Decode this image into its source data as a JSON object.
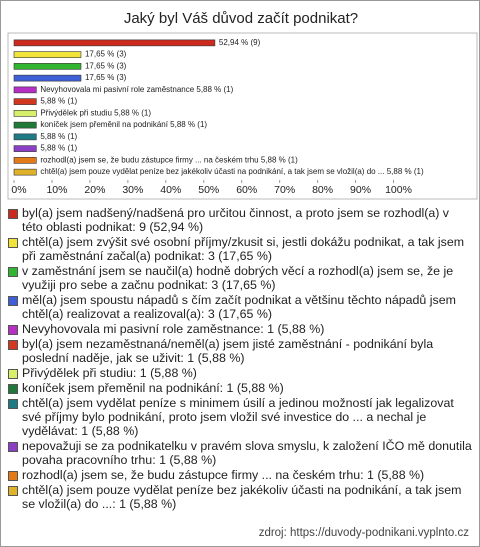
{
  "chart_data": {
    "type": "bar",
    "orientation": "horizontal",
    "title": "Jaký byl Váš důvod začít podnikat?",
    "categories": [
      "byl(a) jsem nadšený/nadšená pro určitou činnost, a proto jsem se rozhodl(a) v této oblasti podnikat: 9 (52,94 %)",
      "chtěl(a) jsem zvýšit své osobní příjmy/zkusit si, jestli dokážu podnikat, a tak jsem při zaměstnání začal(a) podnikat: 3 (17,65 %)",
      "v zaměstnání jsem se naučil(a) hodně dobrých věcí a rozhodl(a) jsem se, že je využiji pro sebe a začnu podnikat: 3 (17,65 %)",
      "měl(a) jsem spoustu nápadů s čím začít podnikat a většinu těchto nápadů jsem chtěl(a) realizovat a realizoval(a): 3 (17,65 %)",
      "Nevyhovovala mi pasivní role zaměstnance: 1 (5,88 %)",
      "byl(a) jsem nezaměstnaná/neměl(a) jsem jisté zaměstnání - podnikání byla poslední naděje, jak se uživit: 1 (5,88 %)",
      "Přivýdělek při studiu: 1 (5,88 %)",
      "koníček jsem přeměnil na podnikání: 1 (5,88 %)",
      "chtěl(a) jsem vydělat peníze s minimem úsilí a jedinou možností jak legalizovat své příjmy bylo podnikání, proto jsem vložil své investice do ... a nechal je vydělávat: 1 (5,88 %)",
      "nepovažuji se za podnikatelku v pravém slova smyslu, k založení IČO mě donutila povaha pracovního trhu: 1 (5,88 %)",
      "rozhodl(a) jsem se, že budu zástupce firmy ... na českém trhu: 1 (5,88 %)",
      "chtěl(a) jsem pouze vydělat peníze bez jakékoliv účasti na podnikání, a tak jsem se vložil(a) do ...: 1 (5,88 %)"
    ],
    "values": [
      52.94,
      17.65,
      17.65,
      17.65,
      5.88,
      5.88,
      5.88,
      5.88,
      5.88,
      5.88,
      5.88,
      5.88
    ],
    "value_labels": [
      "52,94 % (9)",
      "17,65 % (3)",
      "17,65 % (3)",
      "17,65 % (3)",
      "Nevyhovovala mi pasivní role zaměstnance 5,88 % (1)",
      "5,88 % (1)",
      "Přivýdělek při studiu 5,88 % (1)",
      "koníček jsem přeměnil na podnikání 5,88 % (1)",
      "5,88 % (1)",
      "5,88 % (1)",
      "rozhodl(a) jsem se, že budu zástupce firmy ... na českém trhu 5,88 % (1)",
      "chtěl(a) jsem pouze vydělat peníze bez jakékoliv účasti na podnikání, a tak jsem se vložil(a) do ... 5,88 % (1)"
    ],
    "colors": [
      "#cc2a1e",
      "#f2e33a",
      "#2fb52f",
      "#3f5fd6",
      "#b52fc4",
      "#d2371f",
      "#d8ef6a",
      "#1f7a3a",
      "#1f7a86",
      "#8a3fc4",
      "#e37a1a",
      "#e0b22a"
    ],
    "xlim": [
      0,
      122
    ],
    "xticks": [
      {
        "value": 0,
        "label": "0%"
      },
      {
        "value": 10,
        "label": "10%"
      },
      {
        "value": 20,
        "label": "20%"
      },
      {
        "value": 30,
        "label": "30%"
      },
      {
        "value": 40,
        "label": "40%"
      },
      {
        "value": 50,
        "label": "50%"
      },
      {
        "value": 60,
        "label": "60%"
      },
      {
        "value": 70,
        "label": "70%"
      },
      {
        "value": 80,
        "label": "80%"
      },
      {
        "value": 90,
        "label": "90%"
      },
      {
        "value": 100,
        "label": "100%"
      }
    ],
    "source": "zdroj: https://duvody-podnikani.vyplnto.cz"
  }
}
